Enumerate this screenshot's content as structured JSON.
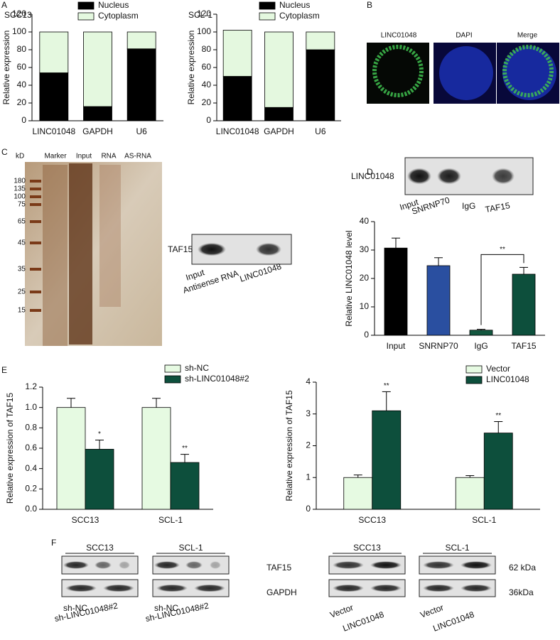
{
  "chart_data": [
    {
      "type": "bar",
      "stacked": true,
      "title": "SCC13",
      "y_label": "Relative expression",
      "categories": [
        "LINC01048",
        "GAPDH",
        "U6"
      ],
      "series": [
        {
          "name": "Nucleus",
          "color": "#000000",
          "values": [
            54,
            16,
            81
          ]
        },
        {
          "name": "Cytoplasm",
          "color": "#e4f8df",
          "values": [
            46,
            84,
            19
          ]
        }
      ],
      "ylim": [
        0,
        120
      ],
      "yticks": [
        0,
        20,
        40,
        60,
        80,
        100,
        120
      ]
    },
    {
      "type": "bar",
      "stacked": true,
      "title": "SCL-1",
      "y_label": "Relative expression",
      "categories": [
        "LINC01048",
        "GAPDH",
        "U6"
      ],
      "series": [
        {
          "name": "Nucleus",
          "color": "#000000",
          "values": [
            50,
            15,
            80
          ]
        },
        {
          "name": "Cytoplasm",
          "color": "#e4f8df",
          "values": [
            52,
            85,
            20
          ]
        }
      ],
      "ylim": [
        0,
        120
      ],
      "yticks": [
        0,
        20,
        40,
        60,
        80,
        100,
        120
      ]
    },
    {
      "type": "bar",
      "y_label": "Relative LINC01048 level",
      "comparison_bracket": true,
      "categories": [
        "Input",
        "SNRNP70",
        "IgG",
        "TAF15"
      ],
      "series": [
        {
          "colors": [
            "#000000",
            "#2a4fa0",
            "#13573f",
            "#0d4f3c"
          ],
          "values": [
            30.7,
            24.5,
            1.8,
            21.5
          ],
          "errors": [
            3.5,
            2.8,
            0.3,
            2.4
          ],
          "significance": [
            null,
            null,
            null,
            "**"
          ]
        }
      ],
      "ylim": [
        0,
        40
      ],
      "yticks": [
        0,
        10,
        20,
        30,
        40
      ]
    },
    {
      "type": "bar",
      "y_label": "Relative expression of TAF15",
      "categories": [
        "SCC13",
        "SCL-1"
      ],
      "series": [
        {
          "name": "sh-NC",
          "color": "#e6fae2",
          "values": [
            1.0,
            1.0
          ],
          "errors": [
            0.09,
            0.09
          ]
        },
        {
          "name": "sh-LINC01048#2",
          "color": "#0d4f3c",
          "values": [
            0.59,
            0.46
          ],
          "errors": [
            0.09,
            0.08
          ],
          "significance": [
            "*",
            "**"
          ]
        }
      ],
      "ylim": [
        0,
        1.2
      ],
      "yticks": [
        {
          "value": 0,
          "label": "0.0"
        },
        0.2,
        0.4,
        0.6,
        0.8,
        {
          "value": 1,
          "label": "1.0"
        },
        1.2
      ]
    },
    {
      "type": "bar",
      "y_label": "Relative expression of TAF15",
      "categories": [
        "SCC13",
        "SCL-1"
      ],
      "series": [
        {
          "name": "Vector",
          "color": "#e6fae2",
          "values": [
            1.0,
            1.0
          ],
          "errors": [
            0.08,
            0.06
          ]
        },
        {
          "name": "LINC01048",
          "color": "#0d4f3c",
          "values": [
            3.1,
            2.4
          ],
          "errors": [
            0.6,
            0.36
          ],
          "significance": [
            "**",
            "**"
          ]
        }
      ],
      "ylim": [
        0,
        4
      ],
      "yticks": [
        0,
        1,
        2,
        3,
        4
      ]
    }
  ],
  "figure": {
    "panels": [
      "A",
      "B",
      "C",
      "D",
      "E",
      "F"
    ],
    "B": {
      "channels": [
        "LINC01048",
        "DAPI",
        "Merge"
      ]
    },
    "C": {
      "unit": "kD",
      "lanes": [
        "Marker",
        "Input",
        "RNA",
        "AS-RNA"
      ],
      "ladder": [
        180,
        135,
        100,
        75,
        65,
        45,
        35,
        25,
        15
      ],
      "blot_label": "TAF15",
      "blot_lanes": [
        "Input",
        "Antisense RNA",
        "LINC01048"
      ]
    },
    "D": {
      "blot_label": "LINC01048",
      "blot_lanes": [
        "Input",
        "SNRNP70",
        "IgG",
        "TAF15"
      ]
    },
    "F": {
      "groups": [
        {
          "title": "SCC13",
          "lanes": [
            "sh-NC",
            "sh-LINC01048#2"
          ]
        },
        {
          "title": "SCL-1",
          "lanes": [
            "sh-NC",
            "sh-LINC01048#2"
          ]
        },
        {
          "title": "SCC13",
          "lanes": [
            "Vector",
            "LINC01048"
          ]
        },
        {
          "title": "SCL-1",
          "lanes": [
            "Vector",
            "LINC01048"
          ]
        }
      ],
      "rows": [
        "TAF15",
        "GAPDH"
      ],
      "sizes": [
        "62 kDa",
        "36kDa"
      ]
    }
  }
}
